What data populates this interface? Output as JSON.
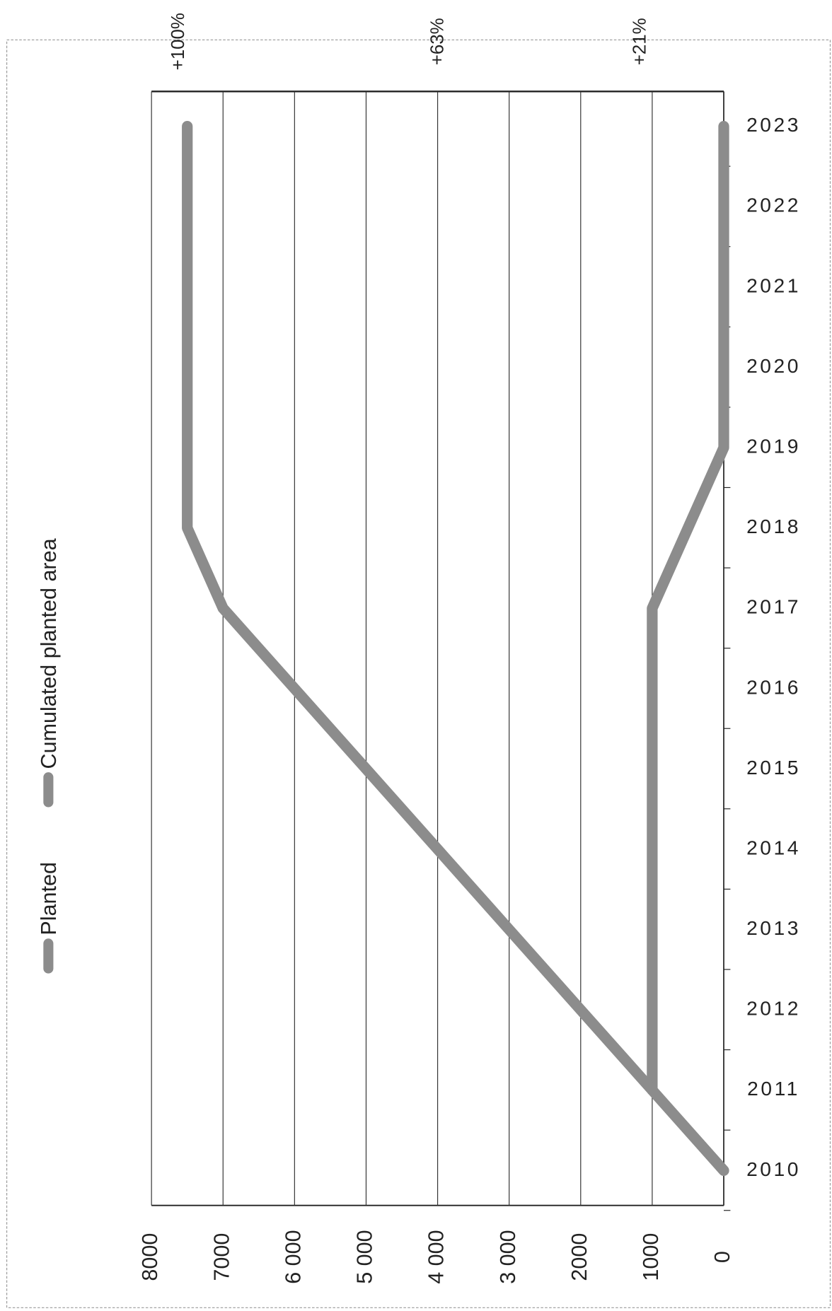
{
  "chart_data": {
    "type": "line",
    "categories": [
      "2010",
      "2011",
      "2012",
      "2013",
      "2014",
      "2015",
      "2016",
      "2017",
      "2018",
      "2019",
      "2020",
      "2021",
      "2022",
      "2023"
    ],
    "series": [
      {
        "name": "Planted",
        "color": "#8c8c8c",
        "values": [
          null,
          1000,
          1000,
          1000,
          1000,
          1000,
          1000,
          1000,
          500,
          0,
          0,
          0,
          0,
          0
        ]
      },
      {
        "name": "Cumulated planted area",
        "color": "#8c8c8c",
        "values": [
          0,
          1000,
          2000,
          3000,
          4000,
          5000,
          6000,
          7000,
          7500,
          7500,
          7500,
          7500,
          7500,
          7500
        ]
      }
    ],
    "annotations": [
      "+100%",
      "+63%",
      "+21%"
    ],
    "ylim": [
      0,
      8000
    ],
    "yticks": [
      0,
      1000,
      2000,
      {
        "value": 3000,
        "label": "3 000"
      },
      {
        "value": 4000,
        "label": "4 000"
      },
      {
        "value": 5000,
        "label": "5 000"
      },
      {
        "value": 6000,
        "label": "6 000"
      },
      7000,
      8000
    ],
    "grid": true
  }
}
